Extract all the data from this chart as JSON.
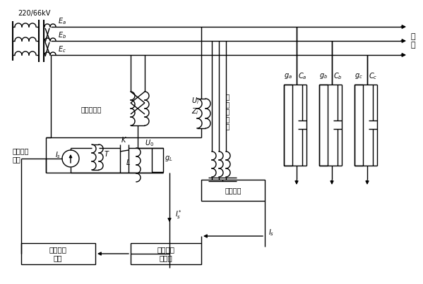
{
  "bg": "#ffffff",
  "lw": 1.0,
  "lbl_220": "220/66kV",
  "lbl_Ea": "$E_a$",
  "lbl_Eb": "$E_b$",
  "lbl_Ec": "$E_c$",
  "lbl_load": "负\n载",
  "lbl_grnd": "接地变压器",
  "lbl_U0": "$U_0$",
  "lbl_Ui": "$U_i$",
  "lbl_Zi": "$Z_i$",
  "lbl_volt": "电压互感器",
  "lbl_detect": "检测装置",
  "lbl_active": "有源逆变\n装置",
  "lbl_Is": "$I_s$",
  "lbl_Is_ref": "$I_s^*$",
  "lbl_T": "$T$",
  "lbl_K": "$K$",
  "lbl_L": "$L$",
  "lbl_gL": "$g_L$",
  "lbl_pulse": "脉冲驱动\n电路",
  "lbl_ctrl": "电流闭环\n控制器",
  "lbl_ga": "$g_a$",
  "lbl_Ca": "$C_a$",
  "lbl_gb": "$g_b$",
  "lbl_Cb": "$C_b$",
  "lbl_gc": "$g_c$",
  "lbl_Cc": "$C_c$"
}
